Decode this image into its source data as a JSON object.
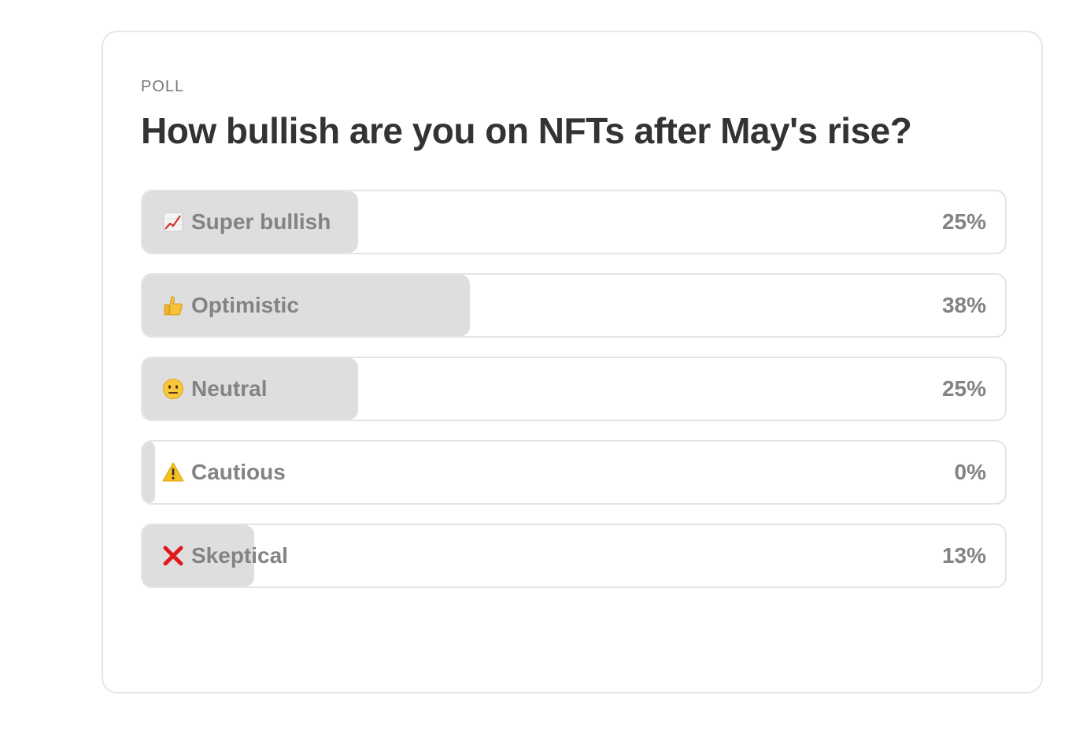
{
  "poll": {
    "eyebrow": "POLL",
    "question": "How bullish are you on NFTs after May's rise?",
    "options": [
      {
        "icon": "chart-increasing-icon",
        "label": "Super bullish",
        "percent_text": "25%",
        "percent": 25
      },
      {
        "icon": "thumbs-up-icon",
        "label": "Optimistic",
        "percent_text": "38%",
        "percent": 38
      },
      {
        "icon": "neutral-face-icon",
        "label": "Neutral",
        "percent_text": "25%",
        "percent": 25
      },
      {
        "icon": "warning-icon",
        "label": "Cautious",
        "percent_text": "0%",
        "percent": 0
      },
      {
        "icon": "cross-mark-icon",
        "label": "Skeptical",
        "percent_text": "13%",
        "percent": 13
      }
    ]
  },
  "colors": {
    "bar_fill": "#dedede",
    "border": "#e4e4e4",
    "text_muted": "#838383",
    "heading": "#333333"
  }
}
